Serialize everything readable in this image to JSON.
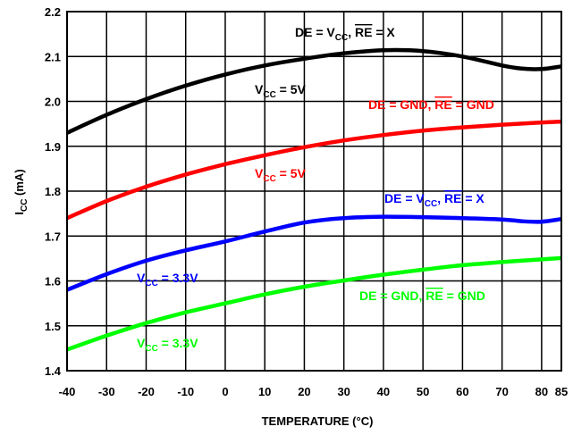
{
  "chart_data": {
    "type": "line",
    "xlabel": "TEMPERATURE (°C)",
    "ylabel": {
      "main": "I",
      "sub": "CC",
      "rest": " (mA)"
    },
    "xlim": [
      -40,
      85
    ],
    "ylim": [
      1.4,
      2.2
    ],
    "x_ticks": [
      -40,
      -30,
      -20,
      -10,
      0,
      10,
      20,
      30,
      40,
      50,
      60,
      70,
      80,
      85
    ],
    "y_ticks": [
      1.4,
      1.5,
      1.6,
      1.7,
      1.8,
      1.9,
      2.0,
      2.1,
      2.2
    ],
    "grid": true,
    "series": [
      {
        "id": "black",
        "color": "#000000",
        "x": [
          -40,
          -30,
          -20,
          -10,
          0,
          10,
          20,
          30,
          40,
          50,
          60,
          70,
          75,
          80,
          85
        ],
        "y": [
          1.93,
          1.97,
          2.005,
          2.035,
          2.06,
          2.08,
          2.095,
          2.107,
          2.114,
          2.112,
          2.1,
          2.08,
          2.073,
          2.072,
          2.078
        ]
      },
      {
        "id": "red",
        "color": "#ff0000",
        "x": [
          -40,
          -30,
          -20,
          -10,
          0,
          10,
          20,
          30,
          40,
          50,
          60,
          70,
          80,
          85
        ],
        "y": [
          1.74,
          1.778,
          1.81,
          1.837,
          1.86,
          1.88,
          1.898,
          1.913,
          1.925,
          1.935,
          1.942,
          1.948,
          1.953,
          1.955
        ]
      },
      {
        "id": "blue",
        "color": "#0000ff",
        "x": [
          -40,
          -30,
          -20,
          -10,
          0,
          10,
          20,
          30,
          40,
          50,
          60,
          70,
          75,
          80,
          85
        ],
        "y": [
          1.58,
          1.615,
          1.645,
          1.668,
          1.688,
          1.71,
          1.73,
          1.74,
          1.743,
          1.742,
          1.74,
          1.737,
          1.733,
          1.732,
          1.738
        ]
      },
      {
        "id": "green",
        "color": "#00ff00",
        "x": [
          -40,
          -30,
          -20,
          -10,
          0,
          10,
          20,
          30,
          40,
          50,
          60,
          70,
          80,
          85
        ],
        "y": [
          1.447,
          1.478,
          1.506,
          1.53,
          1.55,
          1.57,
          1.587,
          1.601,
          1.614,
          1.625,
          1.635,
          1.642,
          1.648,
          1.651
        ]
      }
    ],
    "annotations": [
      {
        "id": "black-cond",
        "color": "#000000",
        "parts": [
          [
            "DE = V",
            ""
          ],
          [
            "CC",
            "sub"
          ],
          [
            ", ",
            ""
          ],
          [
            "RE",
            "over"
          ],
          [
            " = X",
            ""
          ]
        ]
      },
      {
        "id": "black-vcc",
        "color": "#000000",
        "parts": [
          [
            "V",
            ""
          ],
          [
            "CC",
            "sub"
          ],
          [
            " = 5V",
            ""
          ]
        ]
      },
      {
        "id": "red-cond",
        "color": "#ff0000",
        "parts": [
          [
            "DE = GND, ",
            ""
          ],
          [
            "RE",
            "over"
          ],
          [
            " = GND",
            ""
          ]
        ]
      },
      {
        "id": "red-vcc",
        "color": "#ff0000",
        "parts": [
          [
            "V",
            ""
          ],
          [
            "CC",
            "sub"
          ],
          [
            " = 5V",
            ""
          ]
        ]
      },
      {
        "id": "blue-cond",
        "color": "#0000ff",
        "parts": [
          [
            "DE = V",
            ""
          ],
          [
            "CC",
            "sub"
          ],
          [
            ", ",
            ""
          ],
          [
            "RE",
            "over"
          ],
          [
            " = X",
            ""
          ]
        ]
      },
      {
        "id": "blue-vcc",
        "color": "#0000ff",
        "parts": [
          [
            "V",
            ""
          ],
          [
            "CC",
            "sub"
          ],
          [
            " = 3.3V",
            ""
          ]
        ]
      },
      {
        "id": "green-cond",
        "color": "#00ff00",
        "parts": [
          [
            "DE = GND, ",
            ""
          ],
          [
            "RE",
            "over"
          ],
          [
            " = GND",
            ""
          ]
        ]
      },
      {
        "id": "green-vcc",
        "color": "#00ff00",
        "parts": [
          [
            "V",
            ""
          ],
          [
            "CC",
            "sub"
          ],
          [
            " = 3.3V",
            ""
          ]
        ]
      }
    ]
  }
}
